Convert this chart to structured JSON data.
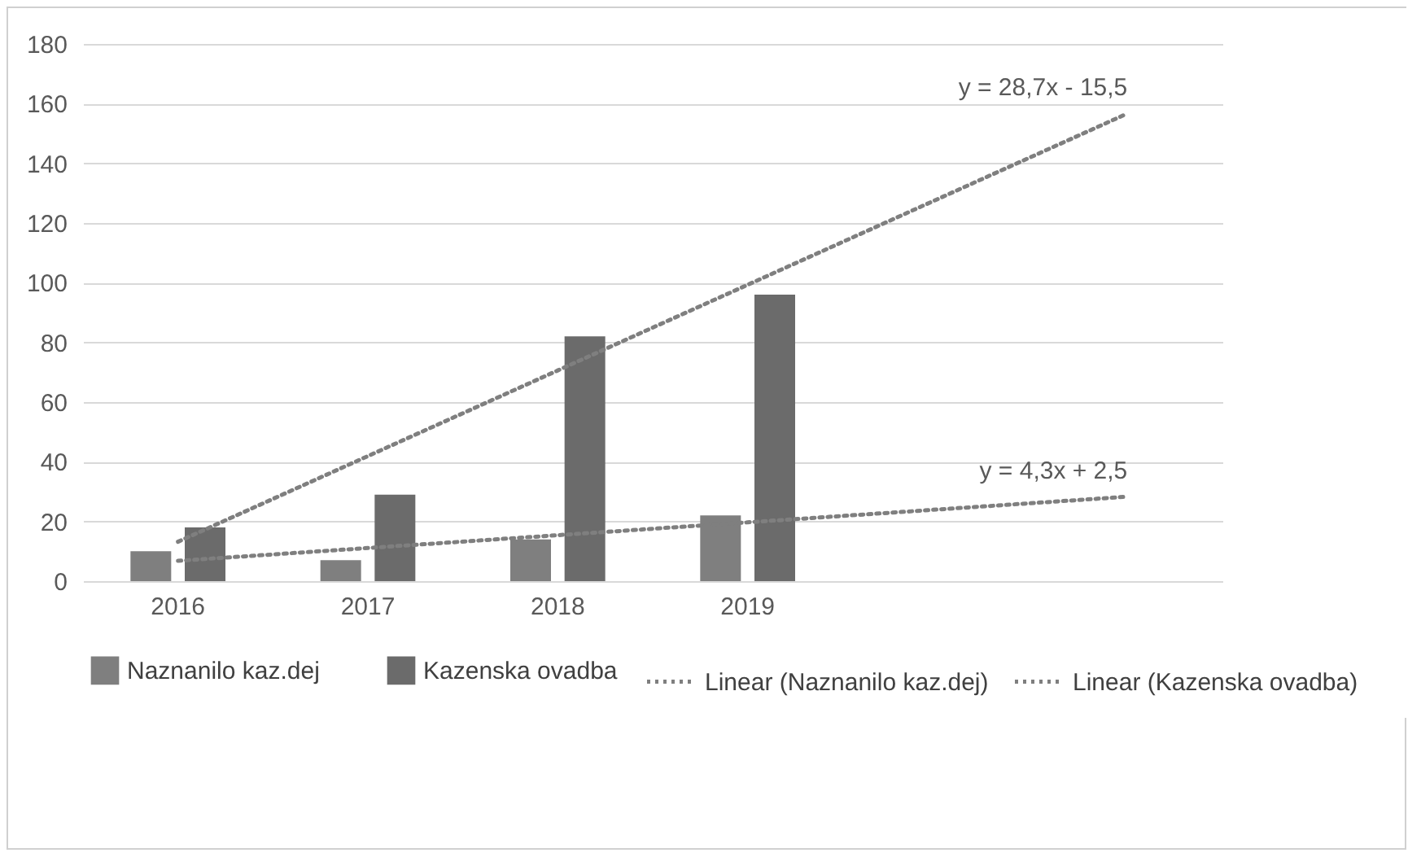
{
  "chart_data": {
    "type": "bar",
    "categories": [
      "2016",
      "2017",
      "2018",
      "2019",
      null,
      null
    ],
    "series": [
      {
        "name": "Naznanilo kaz.dej",
        "color": "#7f7f7f",
        "values": [
          10,
          7,
          14,
          22,
          null,
          null
        ]
      },
      {
        "name": "Kazenska ovadba",
        "color": "#6b6b6b",
        "values": [
          18,
          29,
          82,
          96,
          null,
          null
        ]
      },
      {
        "name": "Linear (Naznanilo kaz.dej)",
        "type": "line",
        "line_style": "dotted",
        "color": "#7f7f7f",
        "values": [
          6.8,
          11.1,
          15.4,
          19.7,
          24,
          28.3
        ]
      },
      {
        "name": "Linear (Kazenska ovadba)",
        "type": "line",
        "line_style": "dotted",
        "color": "#7f7f7f",
        "values": [
          13.2,
          41.9,
          70.6,
          99.3,
          128,
          156.7
        ]
      }
    ],
    "annotations": [
      "y = 28,7x - 15,5",
      "y = 4,3x + 2,5"
    ],
    "ylim": [
      0,
      180
    ],
    "yticks": [
      0,
      20,
      40,
      60,
      80,
      100,
      120,
      140,
      160,
      180
    ],
    "grid": "y",
    "legend": "bottom"
  }
}
